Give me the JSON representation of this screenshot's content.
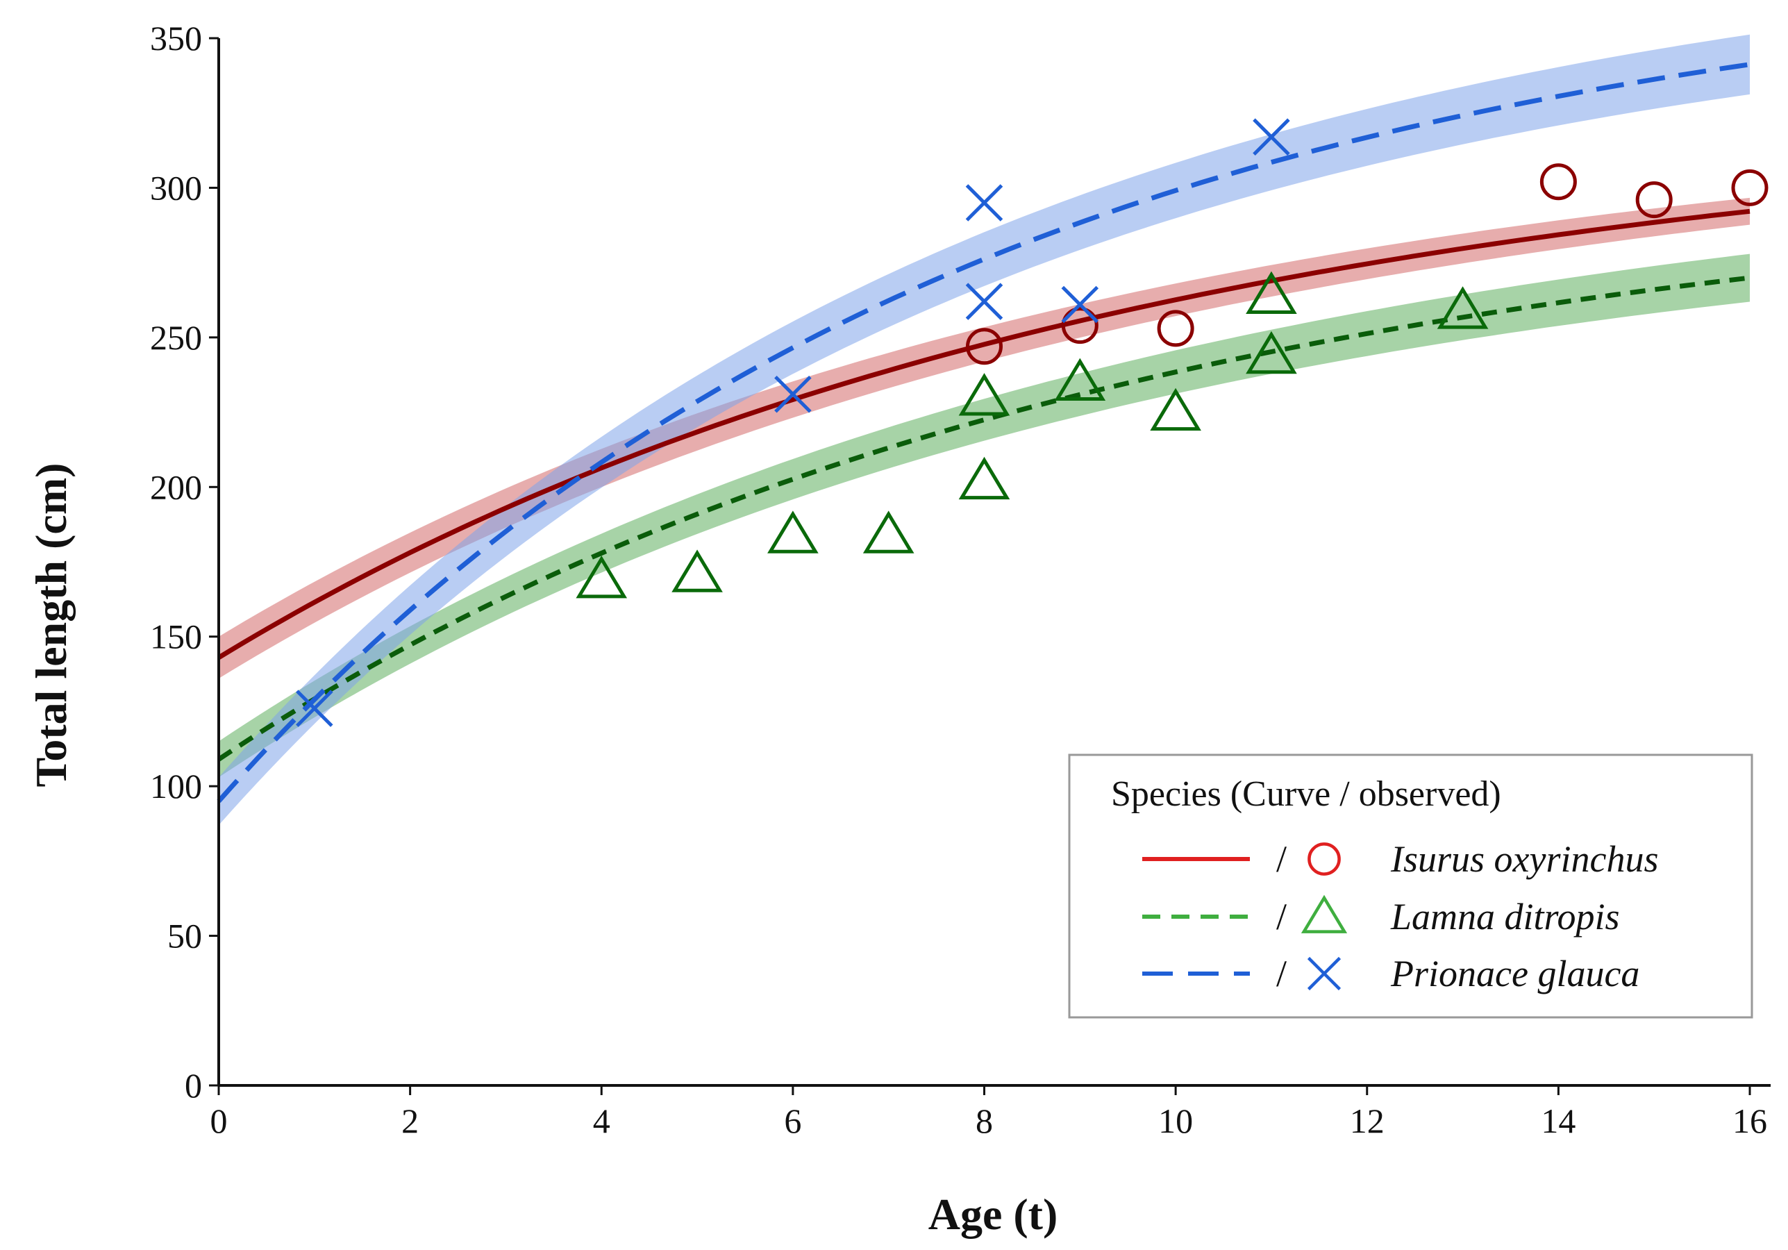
{
  "chart_data": {
    "type": "line",
    "xlabel": "Age (t)",
    "ylabel": "Total length (cm)",
    "xlim": [
      0,
      16
    ],
    "ylim": [
      0,
      350
    ],
    "xticks": [
      0,
      2,
      4,
      6,
      8,
      10,
      12,
      14,
      16
    ],
    "yticks": [
      0,
      50,
      100,
      150,
      200,
      250,
      300,
      350
    ],
    "grid": false,
    "legend": {
      "title": "Species (Curve / observed)",
      "position": "bottom-right",
      "separator": "/"
    },
    "series": [
      {
        "name": "Isurus oxyrinchus",
        "line_style": "solid",
        "marker": "circle",
        "line_color": "#8b0000",
        "band_color": "#d46a6a",
        "legend_line_color": "#e02020",
        "legend_marker_color": "#e02020",
        "marker_color": "#8b0000",
        "curve": {
          "Linf": 325,
          "L0": 143,
          "k": 0.107
        },
        "band_halfwidth": {
          "start": 7,
          "end": 4.5
        },
        "observed": [
          {
            "x": 8,
            "y": 247
          },
          {
            "x": 9,
            "y": 254
          },
          {
            "x": 10,
            "y": 253
          },
          {
            "x": 14,
            "y": 302
          },
          {
            "x": 15,
            "y": 296
          },
          {
            "x": 16,
            "y": 300
          }
        ]
      },
      {
        "name": "Lamna ditropis",
        "line_style": "dashed",
        "marker": "triangle",
        "line_color": "#0a5c0a",
        "band_color": "#5fae5f",
        "legend_line_color": "#3fae3f",
        "legend_marker_color": "#3fae3f",
        "marker_color": "#0a6a0a",
        "curve": {
          "Linf": 304,
          "L0": 109,
          "k": 0.109
        },
        "band_halfwidth": {
          "start": 6,
          "end": 8
        },
        "observed": [
          {
            "x": 4,
            "y": 169
          },
          {
            "x": 5,
            "y": 171
          },
          {
            "x": 6,
            "y": 184
          },
          {
            "x": 7,
            "y": 184
          },
          {
            "x": 8,
            "y": 202
          },
          {
            "x": 8,
            "y": 230
          },
          {
            "x": 9,
            "y": 235
          },
          {
            "x": 10,
            "y": 225
          },
          {
            "x": 11,
            "y": 244
          },
          {
            "x": 11,
            "y": 264
          },
          {
            "x": 13,
            "y": 259
          }
        ]
      },
      {
        "name": "Prionace glauca",
        "line_style": "long-dash",
        "marker": "x",
        "line_color": "#1f5fd6",
        "band_color": "#7fa4ea",
        "legend_line_color": "#1f5fd6",
        "legend_marker_color": "#1f5fd6",
        "marker_color": "#1f5fd6",
        "curve": {
          "Linf": 377.7,
          "L0": 95,
          "k": 0.128
        },
        "band_halfwidth": {
          "start": 8,
          "end": 10
        },
        "observed": [
          {
            "x": 1,
            "y": 126
          },
          {
            "x": 6,
            "y": 231
          },
          {
            "x": 8,
            "y": 262
          },
          {
            "x": 8,
            "y": 295
          },
          {
            "x": 9,
            "y": 261
          },
          {
            "x": 11,
            "y": 317
          }
        ]
      }
    ]
  }
}
